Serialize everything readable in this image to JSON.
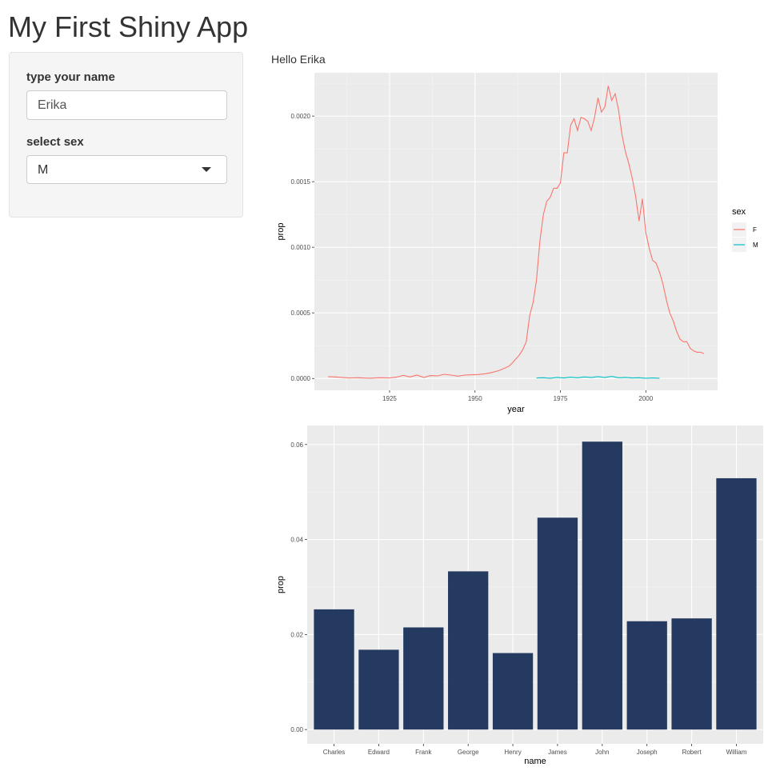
{
  "app": {
    "title": "My First Shiny App"
  },
  "sidebar": {
    "name_label": "type your name",
    "name_value": "Erika",
    "sex_label": "select sex",
    "sex_value": "M"
  },
  "main": {
    "greeting": "Hello Erika"
  },
  "chart_data": [
    {
      "type": "line",
      "title": "",
      "xlabel": "year",
      "ylabel": "prop",
      "xlim": [
        1903,
        2021
      ],
      "ylim": [
        -9e-05,
        0.00233
      ],
      "xticks": [
        1925,
        1950,
        1975,
        2000
      ],
      "yticks": [
        0.0,
        0.0005,
        0.001,
        0.0015,
        0.002
      ],
      "ytick_labels": [
        "0.0000",
        "0.0005",
        "0.0010",
        "0.0015",
        "0.0020"
      ],
      "grid": true,
      "legend": {
        "title": "sex",
        "position": "right"
      },
      "series": [
        {
          "name": "F",
          "color": "#f8766d",
          "x": [
            1907,
            1910,
            1913,
            1916,
            1919,
            1922,
            1925,
            1927,
            1929,
            1931,
            1933,
            1935,
            1937,
            1939,
            1941,
            1943,
            1945,
            1947,
            1949,
            1951,
            1953,
            1955,
            1957,
            1959,
            1960,
            1961,
            1962,
            1963,
            1964,
            1965,
            1966,
            1967,
            1968,
            1969,
            1970,
            1971,
            1972,
            1973,
            1974,
            1975,
            1976,
            1977,
            1978,
            1979,
            1980,
            1981,
            1982,
            1983,
            1984,
            1985,
            1986,
            1987,
            1988,
            1989,
            1990,
            1991,
            1992,
            1993,
            1994,
            1995,
            1996,
            1997,
            1998,
            1999,
            2000,
            2001,
            2002,
            2003,
            2004,
            2005,
            2006,
            2007,
            2008,
            2009,
            2010,
            2011,
            2012,
            2013,
            2014,
            2015,
            2016,
            2017
          ],
          "values": [
            1.4e-05,
            1e-05,
            4e-06,
            6e-06,
            2e-06,
            6e-06,
            4e-06,
            1e-05,
            2.4e-05,
            1.2e-05,
            2.6e-05,
            8e-06,
            2.2e-05,
            2e-05,
            3.2e-05,
            2.6e-05,
            1.8e-05,
            2.6e-05,
            2.8e-05,
            3e-05,
            3.6e-05,
            4.6e-05,
            6e-05,
            8.2e-05,
            9.5e-05,
            0.00012,
            0.00015,
            0.00018,
            0.00022,
            0.00028,
            0.00048,
            0.00058,
            0.00075,
            0.00105,
            0.00125,
            0.00135,
            0.00138,
            0.00145,
            0.00145,
            0.00149,
            0.00172,
            0.00172,
            0.00193,
            0.00198,
            0.00189,
            0.00199,
            0.00198,
            0.00196,
            0.00189,
            0.00199,
            0.00214,
            0.00203,
            0.00207,
            0.00223,
            0.00212,
            0.00217,
            0.00205,
            0.00186,
            0.00173,
            0.00164,
            0.00153,
            0.00139,
            0.0012,
            0.00137,
            0.00111,
            0.00099,
            0.0009,
            0.00088,
            0.00081,
            0.00072,
            0.0006,
            0.0005,
            0.00044,
            0.00036,
            0.0003,
            0.00028,
            0.00028,
            0.00023,
            0.00021,
            0.0002,
            0.0002,
            0.00019
          ]
        },
        {
          "name": "M",
          "color": "#00bfc4",
          "x": [
            1968,
            1970,
            1972,
            1974,
            1976,
            1978,
            1980,
            1982,
            1984,
            1986,
            1988,
            1990,
            1992,
            1994,
            1996,
            1998,
            2000,
            2002,
            2004
          ],
          "values": [
            4e-06,
            6e-06,
            2e-06,
            8e-06,
            4e-06,
            1e-05,
            6e-06,
            1.2e-05,
            8e-06,
            1.4e-05,
            8e-06,
            1.6e-05,
            6e-06,
            8e-06,
            4e-06,
            6e-06,
            2e-06,
            4e-06,
            2e-06
          ]
        }
      ]
    },
    {
      "type": "bar",
      "title": "",
      "xlabel": "name",
      "ylabel": "prop",
      "ylim": [
        -0.003,
        0.064
      ],
      "yticks": [
        0.0,
        0.02,
        0.04,
        0.06
      ],
      "ytick_labels": [
        "0.00",
        "0.02",
        "0.04",
        "0.06"
      ],
      "grid": true,
      "bar_color": "#253a60",
      "categories": [
        "Charles",
        "Edward",
        "Frank",
        "George",
        "Henry",
        "James",
        "John",
        "Joseph",
        "Robert",
        "William"
      ],
      "values": [
        0.0253,
        0.0168,
        0.0215,
        0.0333,
        0.0161,
        0.0446,
        0.0606,
        0.0228,
        0.0234,
        0.0529
      ]
    }
  ]
}
